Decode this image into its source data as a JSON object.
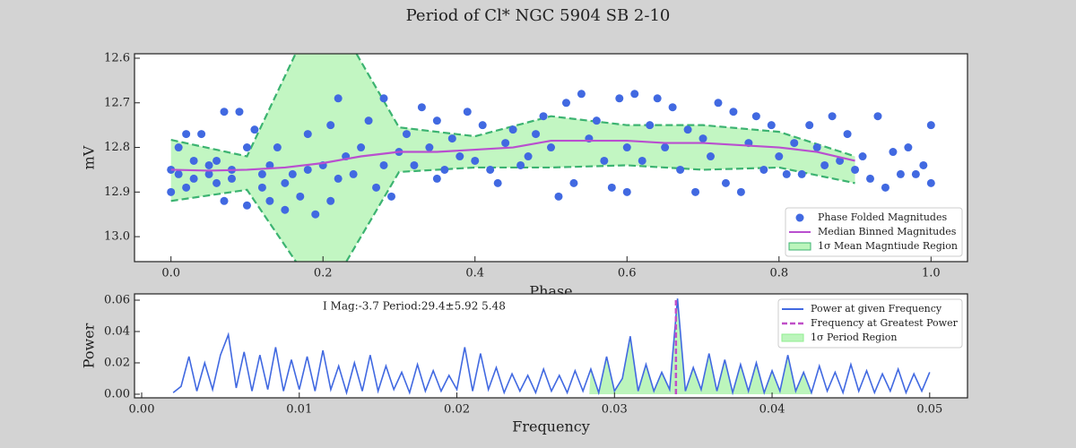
{
  "chart_data": [
    {
      "type": "scatter",
      "title": "Period of Cl* NGC 5904     SB  2-10",
      "xlabel": "Phase",
      "ylabel": "mV",
      "xlim": [
        -0.048,
        1.048
      ],
      "ylim": [
        13.056,
        12.59
      ],
      "xticks": [
        {
          "value": 0,
          "label": "0.0"
        },
        {
          "value": 0.2,
          "label": "0.2"
        },
        {
          "value": 0.4,
          "label": "0.4"
        },
        {
          "value": 0.6,
          "label": "0.6"
        },
        {
          "value": 0.8,
          "label": "0.8"
        },
        {
          "value": 1,
          "label": "1.0"
        }
      ],
      "yticks": [
        12.6,
        12.7,
        12.8,
        12.9,
        {
          "value": 13,
          "label": "13.0"
        }
      ],
      "legend": "lower right",
      "series": [
        {
          "name": "1σ Mean Magntiude Region",
          "type": "band",
          "color": "#90ee90",
          "edge_color": "#3cb371",
          "x": [
            0,
            0.1,
            0.2,
            0.3,
            0.4,
            0.5,
            0.6,
            0.7,
            0.8,
            0.9
          ],
          "upper": [
            12.92,
            12.895,
            13.145,
            12.855,
            12.845,
            12.845,
            12.84,
            12.85,
            12.845,
            12.88
          ],
          "lower": [
            12.783,
            12.82,
            12.46,
            12.755,
            12.775,
            12.73,
            12.75,
            12.75,
            12.765,
            12.82
          ]
        },
        {
          "name": "Phase Folded Magnitudes",
          "type": "scatter",
          "color": "#4169e1",
          "x": [
            0.0,
            0.0,
            0.01,
            0.01,
            0.02,
            0.02,
            0.03,
            0.03,
            0.04,
            0.05,
            0.05,
            0.06,
            0.06,
            0.07,
            0.07,
            0.08,
            0.08,
            0.09,
            0.1,
            0.1,
            0.11,
            0.12,
            0.12,
            0.13,
            0.13,
            0.14,
            0.15,
            0.15,
            0.16,
            0.17,
            0.18,
            0.18,
            0.19,
            0.2,
            0.21,
            0.21,
            0.22,
            0.22,
            0.23,
            0.24,
            0.25,
            0.26,
            0.27,
            0.28,
            0.28,
            0.29,
            0.3,
            0.31,
            0.32,
            0.33,
            0.34,
            0.35,
            0.35,
            0.36,
            0.37,
            0.38,
            0.39,
            0.4,
            0.41,
            0.42,
            0.43,
            0.44,
            0.45,
            0.46,
            0.47,
            0.48,
            0.49,
            0.5,
            0.51,
            0.52,
            0.53,
            0.54,
            0.55,
            0.56,
            0.57,
            0.58,
            0.59,
            0.6,
            0.6,
            0.61,
            0.62,
            0.63,
            0.64,
            0.65,
            0.66,
            0.67,
            0.68,
            0.69,
            0.7,
            0.71,
            0.72,
            0.73,
            0.74,
            0.75,
            0.76,
            0.77,
            0.78,
            0.79,
            0.8,
            0.81,
            0.82,
            0.83,
            0.84,
            0.85,
            0.86,
            0.87,
            0.88,
            0.89,
            0.9,
            0.91,
            0.92,
            0.93,
            0.94,
            0.95,
            0.96,
            0.96,
            0.97,
            0.98,
            0.99,
            1.0,
            1.0
          ],
          "values": [
            12.9,
            12.85,
            12.8,
            12.86,
            12.77,
            12.89,
            12.83,
            12.87,
            12.77,
            12.86,
            12.84,
            12.83,
            12.88,
            12.92,
            12.72,
            12.85,
            12.87,
            12.72,
            12.93,
            12.8,
            12.76,
            12.89,
            12.86,
            12.92,
            12.84,
            12.8,
            12.94,
            12.88,
            12.86,
            12.91,
            12.85,
            12.77,
            12.95,
            12.84,
            12.92,
            12.75,
            12.87,
            12.69,
            12.82,
            12.86,
            12.8,
            12.74,
            12.89,
            12.69,
            12.84,
            12.91,
            12.81,
            12.77,
            12.84,
            12.71,
            12.8,
            12.87,
            12.74,
            12.85,
            12.78,
            12.82,
            12.72,
            12.83,
            12.75,
            12.85,
            12.88,
            12.79,
            12.76,
            12.84,
            12.82,
            12.77,
            12.73,
            12.8,
            12.91,
            12.7,
            12.88,
            12.68,
            12.78,
            12.74,
            12.83,
            12.89,
            12.69,
            12.8,
            12.9,
            12.68,
            12.83,
            12.75,
            12.69,
            12.8,
            12.71,
            12.85,
            12.76,
            12.9,
            12.78,
            12.82,
            12.7,
            12.88,
            12.72,
            12.9,
            12.79,
            12.73,
            12.85,
            12.75,
            12.82,
            12.86,
            12.79,
            12.86,
            12.75,
            12.8,
            12.84,
            12.73,
            12.83,
            12.77,
            12.85,
            12.82,
            12.87,
            12.73,
            12.89,
            12.81,
            12.96,
            12.86,
            12.8,
            12.86,
            12.84,
            12.75,
            12.88
          ]
        },
        {
          "name": "Median Binned Magnitudes",
          "type": "line",
          "color": "#b94fcf",
          "x": [
            0,
            0.05,
            0.1,
            0.15,
            0.2,
            0.25,
            0.3,
            0.35,
            0.4,
            0.45,
            0.5,
            0.55,
            0.6,
            0.65,
            0.7,
            0.75,
            0.8,
            0.85,
            0.9
          ],
          "values": [
            12.85,
            12.852,
            12.85,
            12.845,
            12.835,
            12.82,
            12.81,
            12.81,
            12.805,
            12.8,
            12.785,
            12.785,
            12.785,
            12.79,
            12.79,
            12.795,
            12.8,
            12.81,
            12.83
          ]
        }
      ]
    },
    {
      "type": "line",
      "annotation": "I Mag:-3.7 Period:29.4±5.92 5.48",
      "xlabel": "Frequency",
      "ylabel": "Power",
      "xlim": [
        -0.000455,
        0.0524
      ],
      "ylim": [
        -0.0023,
        0.064
      ],
      "xticks": [
        {
          "value": 0,
          "label": "0.00"
        },
        {
          "value": 0.01,
          "label": "0.01"
        },
        {
          "value": 0.02,
          "label": "0.02"
        },
        {
          "value": 0.03,
          "label": "0.03"
        },
        {
          "value": 0.04,
          "label": "0.04"
        },
        {
          "value": 0.05,
          "label": "0.05"
        }
      ],
      "yticks": [
        {
          "value": 0,
          "label": "0.00"
        },
        {
          "value": 0.02,
          "label": "0.02"
        },
        {
          "value": 0.04,
          "label": "0.04"
        },
        {
          "value": 0.06,
          "label": "0.06"
        }
      ],
      "legend": "upper right",
      "series": [
        {
          "name": "Power at given Frequency",
          "type": "line",
          "color": "#4169e1",
          "x": [
            0.002,
            0.0025,
            0.003,
            0.0035,
            0.004,
            0.0045,
            0.005,
            0.0055,
            0.006,
            0.0065,
            0.007,
            0.0075,
            0.008,
            0.0085,
            0.009,
            0.0095,
            0.01,
            0.0105,
            0.011,
            0.0115,
            0.012,
            0.0125,
            0.013,
            0.0135,
            0.014,
            0.0145,
            0.015,
            0.0155,
            0.016,
            0.0165,
            0.017,
            0.0175,
            0.018,
            0.0185,
            0.019,
            0.0195,
            0.02,
            0.0205,
            0.021,
            0.0215,
            0.022,
            0.0225,
            0.023,
            0.0235,
            0.024,
            0.0245,
            0.025,
            0.0255,
            0.026,
            0.0265,
            0.027,
            0.0275,
            0.028,
            0.0285,
            0.029,
            0.0295,
            0.03,
            0.0305,
            0.031,
            0.0315,
            0.032,
            0.0325,
            0.033,
            0.0335,
            0.034,
            0.0345,
            0.035,
            0.0355,
            0.036,
            0.0365,
            0.037,
            0.0375,
            0.038,
            0.0385,
            0.039,
            0.0395,
            0.04,
            0.0405,
            0.041,
            0.0415,
            0.042,
            0.0425,
            0.043,
            0.0435,
            0.044,
            0.0445,
            0.045,
            0.0455,
            0.046,
            0.0465,
            0.047,
            0.0475,
            0.048,
            0.0485,
            0.049,
            0.0495,
            0.05
          ],
          "values": [
            0.001,
            0.005,
            0.024,
            0.002,
            0.02,
            0.003,
            0.025,
            0.038,
            0.004,
            0.027,
            0.002,
            0.025,
            0.003,
            0.03,
            0.002,
            0.022,
            0.003,
            0.024,
            0.002,
            0.028,
            0.003,
            0.018,
            0.001,
            0.02,
            0.002,
            0.025,
            0.002,
            0.018,
            0.003,
            0.014,
            0.001,
            0.019,
            0.002,
            0.015,
            0.002,
            0.012,
            0.003,
            0.03,
            0.002,
            0.026,
            0.003,
            0.017,
            0.001,
            0.013,
            0.002,
            0.012,
            0.001,
            0.016,
            0.002,
            0.012,
            0.001,
            0.015,
            0.002,
            0.016,
            0.001,
            0.024,
            0.002,
            0.01,
            0.037,
            0.002,
            0.019,
            0.002,
            0.014,
            0.003,
            0.061,
            0.002,
            0.017,
            0.003,
            0.026,
            0.002,
            0.022,
            0.001,
            0.019,
            0.002,
            0.02,
            0.001,
            0.015,
            0.002,
            0.025,
            0.002,
            0.014,
            0.001,
            0.018,
            0.002,
            0.014,
            0.001,
            0.019,
            0.002,
            0.015,
            0.001,
            0.013,
            0.002,
            0.016,
            0.001,
            0.013,
            0.002,
            0.014
          ]
        },
        {
          "name": "Frequency at Greatest Power",
          "type": "vline",
          "color": "#c04fc8",
          "x": 0.0339,
          "ymax": 0.061
        },
        {
          "name": "1σ Period Region",
          "type": "region",
          "color": "#90ee90",
          "xrange": [
            0.0284,
            0.0425
          ]
        }
      ]
    }
  ]
}
